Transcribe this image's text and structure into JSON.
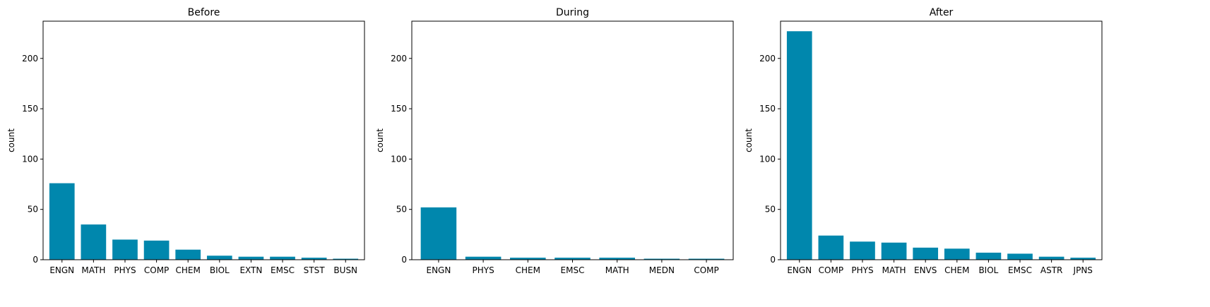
{
  "chart_data": [
    {
      "type": "bar",
      "title": "Before",
      "xlabel": "",
      "ylabel": "count",
      "ylim": [
        0,
        237
      ],
      "yticks": [
        0,
        50,
        100,
        150,
        200
      ],
      "grid": false,
      "bar_color": "#0087ad",
      "categories": [
        "ENGN",
        "MATH",
        "PHYS",
        "COMP",
        "CHEM",
        "BIOL",
        "EXTN",
        "EMSC",
        "STST",
        "BUSN"
      ],
      "values": [
        76,
        35,
        20,
        19,
        10,
        4,
        3,
        3,
        2,
        1
      ]
    },
    {
      "type": "bar",
      "title": "During",
      "xlabel": "",
      "ylabel": "count",
      "ylim": [
        0,
        237
      ],
      "yticks": [
        0,
        50,
        100,
        150,
        200
      ],
      "grid": false,
      "bar_color": "#0087ad",
      "categories": [
        "ENGN",
        "PHYS",
        "CHEM",
        "EMSC",
        "MATH",
        "MEDN",
        "COMP"
      ],
      "values": [
        52,
        3,
        2,
        2,
        2,
        1,
        1
      ]
    },
    {
      "type": "bar",
      "title": "After",
      "xlabel": "",
      "ylabel": "count",
      "ylim": [
        0,
        237
      ],
      "yticks": [
        0,
        50,
        100,
        150,
        200
      ],
      "grid": false,
      "bar_color": "#0087ad",
      "categories": [
        "ENGN",
        "COMP",
        "PHYS",
        "MATH",
        "ENVS",
        "CHEM",
        "BIOL",
        "EMSC",
        "ASTR",
        "JPNS"
      ],
      "values": [
        227,
        24,
        18,
        17,
        12,
        11,
        7,
        6,
        3,
        2
      ]
    }
  ]
}
